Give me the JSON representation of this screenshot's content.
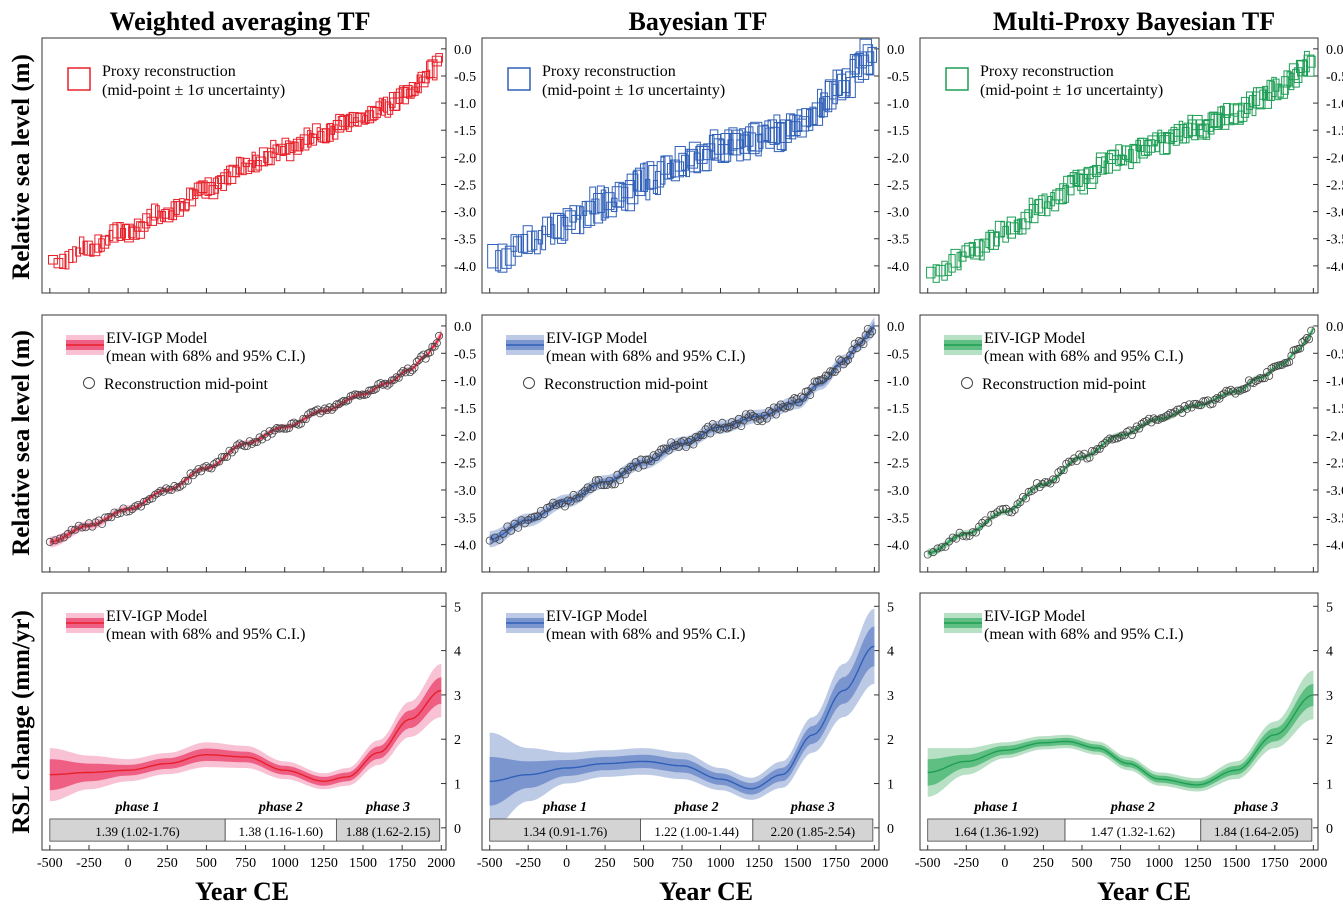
{
  "column_titles": [
    "Weighted averaging TF",
    "Bayesian TF",
    "Multi-Proxy Bayesian TF"
  ],
  "row_ylabels": [
    "Relative sea level (m)",
    "Relative sea level (m)",
    "RSL change   (mm/yr)"
  ],
  "xlabel": "Year CE",
  "colors": {
    "red": "#e8202a",
    "red_band68": "#ef5e83",
    "red_band95": "#f8c2d4",
    "blue": "#3060b8",
    "blue_band68": "#7b95cf",
    "blue_band95": "#bccae6",
    "green": "#1d9e55",
    "green_band68": "#5fbf83",
    "green_band95": "#b8e0c4",
    "phase_box": "#d4d4d4"
  },
  "chart_data": [
    {
      "row": 1,
      "column": 1,
      "type": "scatter",
      "color": "red",
      "marker": "box",
      "title": "Weighted averaging TF",
      "xlabel": "",
      "ylabel": "Relative sea level (m)",
      "xlim": [
        -550,
        2030
      ],
      "ylim": [
        -4.5,
        0.2
      ],
      "xticks": [
        -500,
        -250,
        0,
        250,
        500,
        750,
        1000,
        1250,
        1500,
        1750,
        2000
      ],
      "yticks": [
        0.0,
        -0.5,
        -1.0,
        -1.5,
        -2.0,
        -2.5,
        -3.0,
        -3.5,
        -4.0
      ],
      "ytick_labels": [
        "0.0",
        "-0.5",
        "-1.0",
        "-1.5",
        "-2.0",
        "-2.5",
        "-3.0",
        "-3.5",
        "-4.0"
      ],
      "legend": [
        "Proxy reconstruction",
        "(mid-point ± 1σ uncertainty)"
      ],
      "curve_x": [
        -480,
        -250,
        0,
        250,
        500,
        750,
        1000,
        1250,
        1500,
        1650,
        1800,
        1900,
        1960,
        2000
      ],
      "curve_y": [
        -3.95,
        -3.65,
        -3.35,
        -3.0,
        -2.6,
        -2.15,
        -1.85,
        -1.55,
        -1.25,
        -1.05,
        -0.8,
        -0.55,
        -0.35,
        -0.1
      ],
      "box_halfwidth": [
        20,
        0.12
      ],
      "noise": 0.08
    },
    {
      "row": 1,
      "column": 2,
      "type": "scatter",
      "color": "blue",
      "marker": "box",
      "title": "Bayesian TF",
      "xlabel": "",
      "ylabel": "",
      "xlim": [
        -550,
        2030
      ],
      "ylim": [
        -4.5,
        0.2
      ],
      "xticks": [
        -500,
        -250,
        0,
        250,
        500,
        750,
        1000,
        1250,
        1500,
        1750,
        2000
      ],
      "yticks": [
        0.0,
        -0.5,
        -1.0,
        -1.5,
        -2.0,
        -2.5,
        -3.0,
        -3.5,
        -4.0
      ],
      "ytick_labels": [
        "0.0",
        "-0.5",
        "-1.0",
        "-1.5",
        "-2.0",
        "-2.5",
        "-3.0",
        "-3.5",
        "-4.0"
      ],
      "legend": [
        "Proxy reconstruction",
        "(mid-point ± 1σ uncertainty)"
      ],
      "curve_x": [
        -480,
        -250,
        0,
        250,
        500,
        750,
        1000,
        1250,
        1500,
        1650,
        1800,
        1900,
        1960,
        2000
      ],
      "curve_y": [
        -3.9,
        -3.55,
        -3.2,
        -2.85,
        -2.5,
        -2.15,
        -1.85,
        -1.65,
        -1.4,
        -1.05,
        -0.65,
        -0.35,
        -0.15,
        0.0
      ],
      "box_halfwidth": [
        25,
        0.2
      ],
      "noise": 0.15
    },
    {
      "row": 1,
      "column": 3,
      "type": "scatter",
      "color": "green",
      "marker": "box",
      "title": "Multi-Proxy Bayesian TF",
      "xlabel": "",
      "ylabel": "",
      "xlim": [
        -550,
        2030
      ],
      "ylim": [
        -4.5,
        0.2
      ],
      "xticks": [
        -500,
        -250,
        0,
        250,
        500,
        750,
        1000,
        1250,
        1500,
        1750,
        2000
      ],
      "yticks": [
        0.0,
        -0.5,
        -1.0,
        -1.5,
        -2.0,
        -2.5,
        -3.0,
        -3.5,
        -4.0
      ],
      "ytick_labels": [
        "0.0",
        "-0.5",
        "-1.0",
        "-1.5",
        "-2.0",
        "-2.5",
        "-3.0",
        "-3.5",
        "-4.0"
      ],
      "legend": [
        "Proxy reconstruction",
        "(mid-point ± 1σ uncertainty)"
      ],
      "curve_x": [
        -480,
        -250,
        0,
        250,
        500,
        750,
        1000,
        1250,
        1500,
        1650,
        1800,
        1900,
        1960,
        2000
      ],
      "curve_y": [
        -4.15,
        -3.8,
        -3.4,
        -2.9,
        -2.4,
        -2.0,
        -1.7,
        -1.45,
        -1.2,
        -0.95,
        -0.7,
        -0.45,
        -0.25,
        -0.1
      ],
      "box_halfwidth": [
        22,
        0.14
      ],
      "noise": 0.1
    },
    {
      "row": 2,
      "column": 1,
      "type": "line",
      "color": "red",
      "title": "",
      "xlabel": "",
      "ylabel": "Relative sea level (m)",
      "xlim": [
        -550,
        2030
      ],
      "ylim": [
        -4.5,
        0.2
      ],
      "xticks": [
        -500,
        -250,
        0,
        250,
        500,
        750,
        1000,
        1250,
        1500,
        1750,
        2000
      ],
      "yticks": [
        0.0,
        -0.5,
        -1.0,
        -1.5,
        -2.0,
        -2.5,
        -3.0,
        -3.5,
        -4.0
      ],
      "ytick_labels": [
        "0.0",
        "-0.5",
        "-1.0",
        "-1.5",
        "-2.0",
        "-2.5",
        "-3.0",
        "-3.5",
        "-4.0"
      ],
      "legend": [
        "EIV-IGP Model",
        "(mean with 68% and 95% C.I.)",
        "Reconstruction mid-point"
      ],
      "x": [
        -500,
        -250,
        0,
        250,
        500,
        750,
        1000,
        1250,
        1500,
        1650,
        1800,
        1900,
        1960,
        2000
      ],
      "y": [
        -3.95,
        -3.65,
        -3.35,
        -3.0,
        -2.6,
        -2.15,
        -1.85,
        -1.55,
        -1.25,
        -1.05,
        -0.8,
        -0.55,
        -0.35,
        -0.15
      ],
      "band68": [
        0.05,
        0.04,
        0.035,
        0.03,
        0.03,
        0.03,
        0.03,
        0.03,
        0.03,
        0.03,
        0.03,
        0.03,
        0.04,
        0.05
      ],
      "band95": [
        0.1,
        0.08,
        0.07,
        0.06,
        0.06,
        0.06,
        0.06,
        0.06,
        0.06,
        0.06,
        0.06,
        0.06,
        0.08,
        0.1
      ],
      "noise": 0.05
    },
    {
      "row": 2,
      "column": 2,
      "type": "line",
      "color": "blue",
      "title": "",
      "xlabel": "",
      "ylabel": "",
      "xlim": [
        -550,
        2030
      ],
      "ylim": [
        -4.5,
        0.2
      ],
      "xticks": [
        -500,
        -250,
        0,
        250,
        500,
        750,
        1000,
        1250,
        1500,
        1750,
        2000
      ],
      "yticks": [
        0.0,
        -0.5,
        -1.0,
        -1.5,
        -2.0,
        -2.5,
        -3.0,
        -3.5,
        -4.0
      ],
      "ytick_labels": [
        "0.0",
        "-0.5",
        "-1.0",
        "-1.5",
        "-2.0",
        "-2.5",
        "-3.0",
        "-3.5",
        "-4.0"
      ],
      "legend": [
        "EIV-IGP Model",
        "(mean with 68% and 95% C.I.)",
        "Reconstruction mid-point"
      ],
      "x": [
        -500,
        -250,
        0,
        250,
        500,
        750,
        1000,
        1250,
        1500,
        1650,
        1800,
        1900,
        1960,
        2000
      ],
      "y": [
        -3.9,
        -3.55,
        -3.2,
        -2.85,
        -2.5,
        -2.15,
        -1.85,
        -1.65,
        -1.4,
        -1.05,
        -0.65,
        -0.35,
        -0.15,
        0.0
      ],
      "band68": [
        0.08,
        0.06,
        0.06,
        0.06,
        0.06,
        0.06,
        0.06,
        0.06,
        0.06,
        0.06,
        0.06,
        0.06,
        0.07,
        0.09
      ],
      "band95": [
        0.15,
        0.12,
        0.12,
        0.12,
        0.12,
        0.12,
        0.12,
        0.12,
        0.12,
        0.12,
        0.12,
        0.12,
        0.14,
        0.17
      ],
      "noise": 0.1
    },
    {
      "row": 2,
      "column": 3,
      "type": "line",
      "color": "green",
      "title": "",
      "xlabel": "",
      "ylabel": "",
      "xlim": [
        -550,
        2030
      ],
      "ylim": [
        -4.5,
        0.2
      ],
      "xticks": [
        -500,
        -250,
        0,
        250,
        500,
        750,
        1000,
        1250,
        1500,
        1750,
        2000
      ],
      "yticks": [
        0.0,
        -0.5,
        -1.0,
        -1.5,
        -2.0,
        -2.5,
        -3.0,
        -3.5,
        -4.0
      ],
      "ytick_labels": [
        "0.0",
        "-0.5",
        "-1.0",
        "-1.5",
        "-2.0",
        "-2.5",
        "-3.0",
        "-3.5",
        "-4.0"
      ],
      "legend": [
        "EIV-IGP Model",
        "(mean with 68% and 95% C.I.)",
        "Reconstruction mid-point"
      ],
      "x": [
        -500,
        -250,
        0,
        250,
        500,
        750,
        1000,
        1250,
        1500,
        1650,
        1800,
        1900,
        1960,
        2000
      ],
      "y": [
        -4.15,
        -3.8,
        -3.4,
        -2.9,
        -2.4,
        -2.0,
        -1.7,
        -1.45,
        -1.2,
        -0.95,
        -0.7,
        -0.45,
        -0.25,
        -0.05
      ],
      "band68": [
        0.04,
        0.035,
        0.03,
        0.03,
        0.03,
        0.03,
        0.03,
        0.03,
        0.03,
        0.03,
        0.03,
        0.03,
        0.035,
        0.04
      ],
      "band95": [
        0.08,
        0.07,
        0.06,
        0.06,
        0.06,
        0.06,
        0.06,
        0.06,
        0.06,
        0.06,
        0.06,
        0.06,
        0.07,
        0.08
      ],
      "noise": 0.06
    },
    {
      "row": 3,
      "column": 1,
      "type": "area",
      "color": "red",
      "title": "",
      "xlabel": "Year CE",
      "ylabel": "RSL change   (mm/yr)",
      "xlim": [
        -550,
        2030
      ],
      "ylim": [
        -0.5,
        5.3
      ],
      "xticks": [
        -500,
        -250,
        0,
        250,
        500,
        750,
        1000,
        1250,
        1500,
        1750,
        2000
      ],
      "xtick_labels": [
        "-500",
        "-250",
        "0",
        "250",
        "500",
        "750",
        "1000",
        "1250",
        "1500",
        "1750",
        "2000"
      ],
      "yticks": [
        0,
        1,
        2,
        3,
        4,
        5
      ],
      "ytick_labels": [
        "0",
        "1",
        "2",
        "3",
        "4",
        "5"
      ],
      "legend": [
        "EIV-IGP Model",
        "(mean with 68% and 95% C.I.)"
      ],
      "x": [
        -500,
        -250,
        0,
        250,
        500,
        750,
        1000,
        1250,
        1400,
        1600,
        1800,
        2000
      ],
      "y": [
        1.2,
        1.25,
        1.3,
        1.45,
        1.65,
        1.6,
        1.3,
        1.05,
        1.15,
        1.7,
        2.45,
        3.1
      ],
      "band68": [
        0.35,
        0.2,
        0.12,
        0.12,
        0.14,
        0.12,
        0.1,
        0.1,
        0.1,
        0.14,
        0.2,
        0.3
      ],
      "band95": [
        0.6,
        0.38,
        0.25,
        0.24,
        0.28,
        0.25,
        0.2,
        0.18,
        0.2,
        0.28,
        0.4,
        0.6
      ],
      "phases": [
        {
          "name": "phase 1",
          "start": -500,
          "end": 620,
          "value": "1.39 (1.02-1.76)",
          "shaded": true
        },
        {
          "name": "phase 2",
          "start": 620,
          "end": 1330,
          "value": "1.38 (1.16-1.60)",
          "shaded": false
        },
        {
          "name": "phase 3",
          "start": 1330,
          "end": 1990,
          "value": "1.88 (1.62-2.15)",
          "shaded": true
        }
      ]
    },
    {
      "row": 3,
      "column": 2,
      "type": "area",
      "color": "blue",
      "title": "",
      "xlabel": "Year CE",
      "ylabel": "",
      "xlim": [
        -550,
        2030
      ],
      "ylim": [
        -0.5,
        5.3
      ],
      "xticks": [
        -500,
        -250,
        0,
        250,
        500,
        750,
        1000,
        1250,
        1500,
        1750,
        2000
      ],
      "xtick_labels": [
        "-500",
        "-250",
        "0",
        "250",
        "500",
        "750",
        "1000",
        "1250",
        "1500",
        "1750",
        "2000"
      ],
      "yticks": [
        0,
        1,
        2,
        3,
        4,
        5
      ],
      "ytick_labels": [
        "0",
        "1",
        "2",
        "3",
        "4",
        "5"
      ],
      "legend": [
        "EIV-IGP Model",
        "(mean with 68% and 95% C.I.)"
      ],
      "x": [
        -500,
        -250,
        0,
        250,
        500,
        750,
        1000,
        1200,
        1400,
        1600,
        1800,
        2000
      ],
      "y": [
        1.05,
        1.2,
        1.35,
        1.45,
        1.5,
        1.4,
        1.1,
        0.88,
        1.2,
        2.1,
        3.1,
        4.1
      ],
      "band68": [
        0.55,
        0.3,
        0.18,
        0.15,
        0.15,
        0.15,
        0.13,
        0.13,
        0.15,
        0.2,
        0.3,
        0.45
      ],
      "band95": [
        1.1,
        0.6,
        0.35,
        0.3,
        0.3,
        0.3,
        0.25,
        0.25,
        0.3,
        0.4,
        0.6,
        0.85
      ],
      "phases": [
        {
          "name": "phase 1",
          "start": -500,
          "end": 480,
          "value": "1.34 (0.91-1.76)",
          "shaded": true
        },
        {
          "name": "phase 2",
          "start": 480,
          "end": 1210,
          "value": "1.22 (1.00-1.44)",
          "shaded": false
        },
        {
          "name": "phase 3",
          "start": 1210,
          "end": 1990,
          "value": "2.20 (1.85-2.54)",
          "shaded": true
        }
      ]
    },
    {
      "row": 3,
      "column": 3,
      "type": "area",
      "color": "green",
      "title": "",
      "xlabel": "Year CE",
      "ylabel": "",
      "xlim": [
        -550,
        2030
      ],
      "ylim": [
        -0.5,
        5.3
      ],
      "xticks": [
        -500,
        -250,
        0,
        250,
        500,
        750,
        1000,
        1250,
        1500,
        1750,
        2000
      ],
      "xtick_labels": [
        "-500",
        "-250",
        "0",
        "250",
        "500",
        "750",
        "1000",
        "1250",
        "1500",
        "1750",
        "2000"
      ],
      "yticks": [
        0,
        1,
        2,
        3,
        4,
        5
      ],
      "ytick_labels": [
        "0",
        "1",
        "2",
        "3",
        "4",
        "5"
      ],
      "legend": [
        "EIV-IGP Model",
        "(mean with 68% and 95% C.I.)"
      ],
      "x": [
        -500,
        -250,
        0,
        250,
        400,
        600,
        800,
        1000,
        1250,
        1500,
        1750,
        2000
      ],
      "y": [
        1.25,
        1.5,
        1.75,
        1.92,
        1.95,
        1.8,
        1.45,
        1.1,
        0.97,
        1.3,
        2.1,
        3.0
      ],
      "band68": [
        0.3,
        0.15,
        0.1,
        0.08,
        0.08,
        0.08,
        0.08,
        0.08,
        0.08,
        0.1,
        0.15,
        0.25
      ],
      "band95": [
        0.55,
        0.3,
        0.18,
        0.15,
        0.15,
        0.15,
        0.15,
        0.15,
        0.15,
        0.2,
        0.3,
        0.55
      ],
      "phases": [
        {
          "name": "phase 1",
          "start": -500,
          "end": 390,
          "value": "1.64 (1.36-1.92)",
          "shaded": true
        },
        {
          "name": "phase 2",
          "start": 390,
          "end": 1270,
          "value": "1.47 (1.32-1.62)",
          "shaded": false
        },
        {
          "name": "phase 3",
          "start": 1270,
          "end": 1990,
          "value": "1.84 (1.64-2.05)",
          "shaded": true
        }
      ]
    }
  ]
}
